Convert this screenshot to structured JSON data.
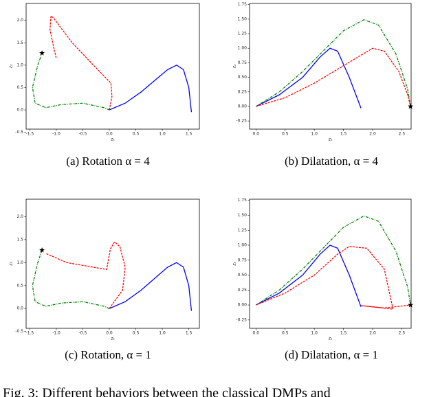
{
  "figure_caption": "Fig. 3: Different behaviors between the classical DMPs and",
  "chart_data": [
    {
      "type": "line",
      "caption": "(a) Rotation α = 4",
      "x_label": "z₁",
      "y_label": "z₂",
      "xlim": [
        -1.57,
        1.7
      ],
      "ylim": [
        -0.43,
        2.38
      ],
      "xticks": [
        -1.5,
        {
          "value": -1,
          "label": "-1.0"
        },
        -0.5,
        {
          "value": 0,
          "label": "0.0"
        },
        0.5,
        {
          "value": 1,
          "label": "1.0"
        },
        1.5
      ],
      "yticks": [
        -0.5,
        {
          "value": 0,
          "label": "0.0"
        },
        0.5,
        {
          "value": 1,
          "label": "1.0"
        },
        1.5,
        {
          "value": 2,
          "label": "2.0"
        }
      ],
      "series": [
        {
          "color": "#0000ff",
          "dash": "solid",
          "x": [
            0,
            0.3,
            0.6,
            0.9,
            1.1,
            1.27,
            1.4,
            1.5,
            1.55
          ],
          "values": [
            0,
            0.15,
            0.4,
            0.7,
            0.9,
            1.0,
            0.9,
            0.5,
            -0.05
          ]
        },
        {
          "color": "#008000",
          "dash": "dashdot",
          "x": [
            0,
            -0.1,
            -0.5,
            -0.9,
            -1.2,
            -1.4,
            -1.45,
            -1.35,
            -1.27
          ],
          "values": [
            0,
            0.05,
            0.15,
            0.12,
            0.05,
            0.15,
            0.5,
            1.0,
            1.27
          ]
        },
        {
          "color": "#ff0000",
          "dash": "dashed",
          "x": [
            0,
            0.05,
            0.03,
            -0.3,
            -0.7,
            -1.05,
            -1.1,
            -1.12,
            -1.05,
            -1.0
          ],
          "values": [
            0,
            0.3,
            0.6,
            1.0,
            1.5,
            2.05,
            2.1,
            1.8,
            1.4,
            1.15
          ]
        }
      ],
      "target": {
        "x": -1.27,
        "y": 1.27
      }
    },
    {
      "type": "line",
      "caption": "(b) Dilatation, α = 4",
      "x_label": "z₁",
      "y_label": "z₂",
      "xlim": [
        -0.11,
        2.66
      ],
      "ylim": [
        -0.39,
        1.77
      ],
      "xticks": [
        {
          "value": 0,
          "label": "0.0"
        },
        0.5,
        {
          "value": 1,
          "label": "1.0"
        },
        1.5,
        {
          "value": 2,
          "label": "2.0"
        },
        2.5
      ],
      "yticks": [
        -0.25,
        {
          "value": 0,
          "label": "0.00"
        },
        0.25,
        {
          "value": 0.5,
          "label": "0.50"
        },
        0.75,
        {
          "value": 1,
          "label": "1.00"
        },
        1.25,
        {
          "value": 1.5,
          "label": "1.50"
        },
        1.75
      ],
      "series": [
        {
          "color": "#0000ff",
          "dash": "solid",
          "x": [
            0,
            0.4,
            0.8,
            1.1,
            1.27,
            1.4,
            1.6,
            1.8
          ],
          "values": [
            0,
            0.2,
            0.5,
            0.85,
            1.0,
            0.95,
            0.5,
            -0.03
          ]
        },
        {
          "color": "#008000",
          "dash": "dashdot",
          "x": [
            0,
            0.4,
            0.8,
            1.2,
            1.5,
            1.85,
            2.1,
            2.4,
            2.6,
            2.65
          ],
          "values": [
            0,
            0.25,
            0.6,
            1.0,
            1.3,
            1.49,
            1.4,
            0.9,
            0.3,
            0
          ]
        },
        {
          "color": "#ff0000",
          "dash": "dashed",
          "x": [
            0,
            0.5,
            1.0,
            1.5,
            2.0,
            2.2,
            2.45,
            2.6,
            2.65
          ],
          "values": [
            0,
            0.15,
            0.4,
            0.7,
            1.0,
            0.95,
            0.6,
            0.2,
            0
          ]
        }
      ],
      "target": {
        "x": 2.65,
        "y": 0
      }
    },
    {
      "type": "line",
      "caption": "(c) Rotation, α = 1",
      "x_label": "z₁",
      "y_label": "z₂",
      "xlim": [
        -1.57,
        1.7
      ],
      "ylim": [
        -0.43,
        2.38
      ],
      "xticks": [
        -1.5,
        {
          "value": -1,
          "label": "-1.0"
        },
        -0.5,
        {
          "value": 0,
          "label": "0.0"
        },
        0.5,
        {
          "value": 1,
          "label": "1.0"
        },
        1.5
      ],
      "yticks": [
        -0.5,
        {
          "value": 0,
          "label": "0.0"
        },
        0.5,
        {
          "value": 1,
          "label": "1.0"
        },
        1.5,
        {
          "value": 2,
          "label": "2.0"
        }
      ],
      "series": [
        {
          "color": "#0000ff",
          "dash": "solid",
          "x": [
            0,
            0.3,
            0.6,
            0.9,
            1.1,
            1.27,
            1.4,
            1.5,
            1.55
          ],
          "values": [
            0,
            0.15,
            0.4,
            0.7,
            0.9,
            1.0,
            0.9,
            0.5,
            -0.05
          ]
        },
        {
          "color": "#008000",
          "dash": "dashdot",
          "x": [
            0,
            -0.1,
            -0.5,
            -0.9,
            -1.2,
            -1.4,
            -1.45,
            -1.35,
            -1.27
          ],
          "values": [
            0,
            0.05,
            0.15,
            0.12,
            0.05,
            0.15,
            0.5,
            1.0,
            1.27
          ]
        },
        {
          "color": "#ff0000",
          "dash": "dashed",
          "x": [
            0,
            0.25,
            0.3,
            0.2,
            0.1,
            0.02,
            -0.05,
            -0.4,
            -0.8,
            -1.2
          ],
          "values": [
            0,
            0.4,
            0.9,
            1.35,
            1.45,
            1.3,
            0.85,
            0.92,
            1.0,
            1.2
          ]
        }
      ],
      "target": {
        "x": -1.27,
        "y": 1.27
      }
    },
    {
      "type": "line",
      "caption": "(d) Dilatation, α = 1",
      "x_label": "z₁",
      "y_label": "z₂",
      "xlim": [
        -0.11,
        2.66
      ],
      "ylim": [
        -0.39,
        1.77
      ],
      "xticks": [
        {
          "value": 0,
          "label": "0.0"
        },
        0.5,
        {
          "value": 1,
          "label": "1.0"
        },
        1.5,
        {
          "value": 2,
          "label": "2.0"
        },
        2.5
      ],
      "yticks": [
        -0.25,
        {
          "value": 0,
          "label": "0.00"
        },
        0.25,
        {
          "value": 0.5,
          "label": "0.50"
        },
        0.75,
        {
          "value": 1,
          "label": "1.00"
        },
        1.25,
        {
          "value": 1.5,
          "label": "1.50"
        },
        1.75
      ],
      "series": [
        {
          "color": "#0000ff",
          "dash": "solid",
          "x": [
            0,
            0.4,
            0.8,
            1.1,
            1.27,
            1.4,
            1.6,
            1.8
          ],
          "values": [
            0,
            0.2,
            0.5,
            0.85,
            1.0,
            0.95,
            0.5,
            -0.03
          ]
        },
        {
          "color": "#008000",
          "dash": "dashdot",
          "x": [
            0,
            0.4,
            0.8,
            1.2,
            1.5,
            1.85,
            2.1,
            2.4,
            2.6,
            2.65
          ],
          "values": [
            0,
            0.25,
            0.6,
            1.0,
            1.3,
            1.49,
            1.4,
            0.9,
            0.3,
            0
          ]
        },
        {
          "color": "#ff0000",
          "dash": "dashed",
          "x": [
            0,
            0.5,
            1.0,
            1.4,
            1.6,
            1.9,
            2.2,
            2.35,
            1.8,
            2.2,
            2.65
          ],
          "values": [
            0,
            0.2,
            0.5,
            0.85,
            0.98,
            0.95,
            0.6,
            -0.07,
            -0.01,
            -0.05,
            0
          ]
        }
      ],
      "target": {
        "x": 2.65,
        "y": 0
      }
    }
  ]
}
